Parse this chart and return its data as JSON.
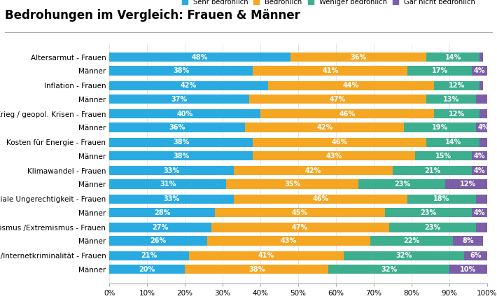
{
  "title": "Bedrohungen im Vergleich: Frauen & Männer",
  "categories": [
    "Altersarmut - Frauen",
    "Männer",
    "Inflation - Frauen",
    "Männer",
    "Krieg / geopol. Krisen - Frauen",
    "Männer",
    "Kosten für Energie - Frauen",
    "Männer",
    "Klimawandel - Frauen",
    "Männer",
    "Soziale Ungerechtigkeit - Frauen",
    "Männer",
    "Populismus /Extremismus - Frauen",
    "Männer",
    "KI/Internetkriminalität - Frauen",
    "Männer"
  ],
  "sehr_bedrohlich": [
    48,
    38,
    42,
    37,
    40,
    36,
    38,
    38,
    33,
    31,
    33,
    28,
    27,
    26,
    21,
    20
  ],
  "bedrohlich": [
    36,
    41,
    44,
    47,
    46,
    42,
    46,
    43,
    42,
    35,
    46,
    45,
    47,
    43,
    41,
    38
  ],
  "weniger_bedrohlich": [
    14,
    17,
    12,
    13,
    12,
    19,
    14,
    15,
    21,
    23,
    18,
    23,
    23,
    22,
    32,
    32
  ],
  "gar_nicht": [
    1,
    4,
    1,
    3,
    2,
    4,
    2,
    4,
    4,
    12,
    3,
    4,
    3,
    8,
    6,
    10
  ],
  "colors": {
    "sehr_bedrohlich": "#29ABE2",
    "bedrohlich": "#F5A623",
    "weniger_bedrohlich": "#3DAE8E",
    "gar_nicht": "#7B5EA7"
  },
  "legend_labels": [
    "Sehr bedrohlich",
    "Bedrohlich",
    "Weniger bedrohlich",
    "Gar nicht bedrohlich"
  ],
  "background_color": "#FFFFFF",
  "title_fontsize": 12,
  "bar_height": 0.38,
  "label_fontsize": 7.0,
  "ytick_fontsize": 7.5,
  "xtick_fontsize": 7.5
}
